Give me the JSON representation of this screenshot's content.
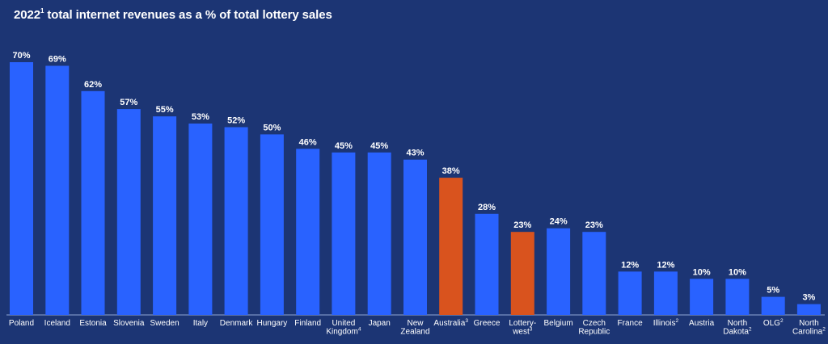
{
  "chart_data": {
    "type": "bar",
    "title_main": "2022",
    "title_sup": "1",
    "title_rest": " total internet revenues as a % of total lottery sales",
    "unit_suffix": "%",
    "ylim": [
      0,
      70
    ],
    "xlabel": "",
    "ylabel": "",
    "default_color": "#2962ff",
    "highlight_color": "#d9531e",
    "categories": [
      {
        "lines": [
          [
            "Poland",
            ""
          ]
        ],
        "value": 70,
        "highlight": false
      },
      {
        "lines": [
          [
            "Iceland",
            ""
          ]
        ],
        "value": 69,
        "highlight": false
      },
      {
        "lines": [
          [
            "Estonia",
            ""
          ]
        ],
        "value": 62,
        "highlight": false
      },
      {
        "lines": [
          [
            "Slovenia",
            ""
          ]
        ],
        "value": 57,
        "highlight": false
      },
      {
        "lines": [
          [
            "Sweden",
            ""
          ]
        ],
        "value": 55,
        "highlight": false
      },
      {
        "lines": [
          [
            "Italy",
            ""
          ]
        ],
        "value": 53,
        "highlight": false
      },
      {
        "lines": [
          [
            "Denmark",
            ""
          ]
        ],
        "value": 52,
        "highlight": false
      },
      {
        "lines": [
          [
            "Hungary",
            ""
          ]
        ],
        "value": 50,
        "highlight": false
      },
      {
        "lines": [
          [
            "Finland",
            ""
          ]
        ],
        "value": 46,
        "highlight": false
      },
      {
        "lines": [
          [
            "United",
            ""
          ],
          [
            "Kingdom",
            "4"
          ]
        ],
        "value": 45,
        "highlight": false
      },
      {
        "lines": [
          [
            "Japan",
            ""
          ]
        ],
        "value": 45,
        "highlight": false
      },
      {
        "lines": [
          [
            "New",
            ""
          ],
          [
            "Zealand",
            ""
          ]
        ],
        "value": 43,
        "highlight": false
      },
      {
        "lines": [
          [
            "Australia",
            "3"
          ]
        ],
        "value": 38,
        "highlight": true
      },
      {
        "lines": [
          [
            "Greece",
            ""
          ]
        ],
        "value": 28,
        "highlight": false
      },
      {
        "lines": [
          [
            "Lottery-",
            ""
          ],
          [
            "west",
            "3"
          ]
        ],
        "value": 23,
        "highlight": true
      },
      {
        "lines": [
          [
            "Belgium",
            ""
          ]
        ],
        "value": 24,
        "highlight": false
      },
      {
        "lines": [
          [
            "Czech",
            ""
          ],
          [
            "Republic",
            ""
          ]
        ],
        "value": 23,
        "highlight": false
      },
      {
        "lines": [
          [
            "France",
            ""
          ]
        ],
        "value": 12,
        "highlight": false
      },
      {
        "lines": [
          [
            "Illinois",
            "2"
          ]
        ],
        "value": 12,
        "highlight": false
      },
      {
        "lines": [
          [
            "Austria",
            ""
          ]
        ],
        "value": 10,
        "highlight": false
      },
      {
        "lines": [
          [
            "North",
            ""
          ],
          [
            "Dakota",
            "2"
          ]
        ],
        "value": 10,
        "highlight": false
      },
      {
        "lines": [
          [
            "OLG",
            "2"
          ]
        ],
        "value": 5,
        "highlight": false
      },
      {
        "lines": [
          [
            "North",
            ""
          ],
          [
            "Carolina",
            "2"
          ]
        ],
        "value": 3,
        "highlight": false
      }
    ]
  }
}
